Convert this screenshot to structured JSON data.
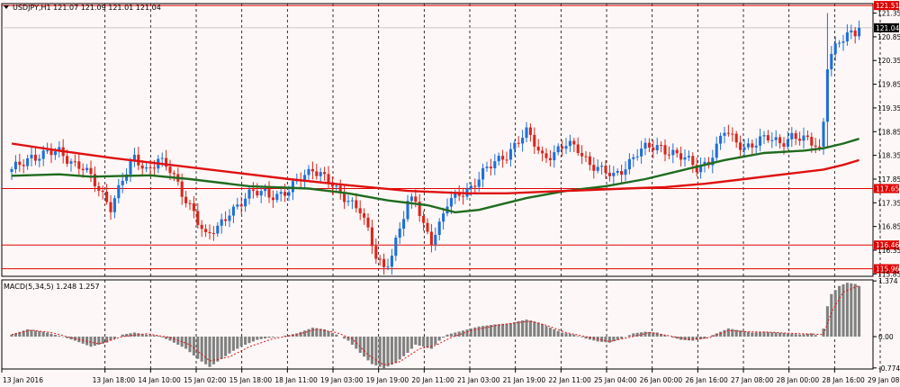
{
  "header": {
    "symbol_info": "USDJPY,H1  121.07 121.09 121.01 121.04",
    "macd_info": "MACD(5,34,5) 1.248 1.257"
  },
  "colors": {
    "background": "#fdf8f7",
    "bull": "#1e6fd9",
    "bear": "#d9261c",
    "ma_fast": "#1f6b1f",
    "ma_slow": "#e01010",
    "level": "#e00000",
    "signal": "#e01010",
    "histogram": "#808080"
  },
  "chart_data": [
    {
      "type": "candlestick",
      "symbol": "USDJPY",
      "timeframe": "H1",
      "ylim": [
        115.8,
        121.55
      ],
      "y_ticks": [
        "121.35",
        "120.85",
        "120.35",
        "119.85",
        "119.35",
        "118.85",
        "118.35",
        "117.85",
        "117.35",
        "116.85",
        "116.35",
        "115.85"
      ],
      "x_ticks": [
        "13 Jan 2016",
        "13 Jan 18:00",
        "14 Jan 10:00",
        "15 Jan 02:00",
        "15 Jan 18:00",
        "18 Jan 11:00",
        "19 Jan 03:00",
        "19 Jan 19:00",
        "20 Jan 11:00",
        "21 Jan 03:00",
        "21 Jan 19:00",
        "22 Jan 11:00",
        "25 Jan 04:00",
        "26 Jan 00:00",
        "26 Jan 16:00",
        "27 Jan 08:00",
        "28 Jan 00:00",
        "28 Jan 16:00",
        "29 Jan 08:00"
      ],
      "current_price": {
        "value": 121.04,
        "label": "121.04"
      },
      "levels": [
        {
          "value": 121.51,
          "label": "121.51"
        },
        {
          "value": 117.65,
          "label": "117.65"
        },
        {
          "value": 116.46,
          "label": "116.46"
        },
        {
          "value": 115.96,
          "label": "115.96"
        }
      ],
      "close_path": [
        [
          0,
          118.0
        ],
        [
          5,
          118.35
        ],
        [
          12,
          118.4
        ],
        [
          18,
          118.1
        ],
        [
          22,
          117.6
        ],
        [
          25,
          117.3
        ],
        [
          28,
          117.85
        ],
        [
          31,
          118.25
        ],
        [
          34,
          118.05
        ],
        [
          37,
          118.3
        ],
        [
          40,
          118.0
        ],
        [
          43,
          117.55
        ],
        [
          46,
          117.2
        ],
        [
          49,
          116.6
        ],
        [
          52,
          116.8
        ],
        [
          55,
          117.2
        ],
        [
          58,
          117.35
        ],
        [
          61,
          117.55
        ],
        [
          64,
          117.6
        ],
        [
          67,
          117.5
        ],
        [
          70,
          117.55
        ],
        [
          73,
          117.9
        ],
        [
          76,
          118.1
        ],
        [
          79,
          117.85
        ],
        [
          82,
          117.6
        ],
        [
          85,
          117.45
        ],
        [
          88,
          117.2
        ],
        [
          90,
          116.7
        ],
        [
          92,
          116.2
        ],
        [
          94,
          116.0
        ],
        [
          96,
          116.3
        ],
        [
          98,
          116.8
        ],
        [
          100,
          117.3
        ],
        [
          102,
          117.4
        ],
        [
          104,
          116.9
        ],
        [
          106,
          116.6
        ],
        [
          108,
          116.85
        ],
        [
          110,
          117.3
        ],
        [
          113,
          117.55
        ],
        [
          116,
          117.7
        ],
        [
          119,
          117.95
        ],
        [
          122,
          118.2
        ],
        [
          125,
          118.4
        ],
        [
          128,
          118.65
        ],
        [
          130,
          118.8
        ],
        [
          132,
          118.6
        ],
        [
          134,
          118.35
        ],
        [
          137,
          118.4
        ],
        [
          140,
          118.55
        ],
        [
          143,
          118.5
        ],
        [
          146,
          118.2
        ],
        [
          149,
          118.0
        ],
        [
          152,
          117.9
        ],
        [
          155,
          118.15
        ],
        [
          158,
          118.4
        ],
        [
          161,
          118.5
        ],
        [
          164,
          118.55
        ],
        [
          167,
          118.4
        ],
        [
          170,
          118.25
        ],
        [
          173,
          118.1
        ],
        [
          176,
          118.25
        ],
        [
          178,
          118.5
        ],
        [
          180,
          118.85
        ],
        [
          182,
          118.7
        ],
        [
          185,
          118.55
        ],
        [
          188,
          118.6
        ],
        [
          191,
          118.7
        ],
        [
          194,
          118.65
        ],
        [
          197,
          118.75
        ],
        [
          200,
          118.65
        ],
        [
          203,
          118.6
        ],
        [
          204,
          118.5
        ],
        [
          205,
          119.1
        ],
        [
          206,
          120.3
        ],
        [
          207,
          120.5
        ],
        [
          209,
          120.7
        ],
        [
          211,
          120.85
        ],
        [
          213,
          120.95
        ],
        [
          214,
          121.04
        ]
      ],
      "series": [
        {
          "name": "MA fast",
          "values": [
            [
              0,
              117.92
            ],
            [
              12,
              117.95
            ],
            [
              20,
              117.9
            ],
            [
              35,
              117.93
            ],
            [
              45,
              117.85
            ],
            [
              60,
              117.7
            ],
            [
              75,
              117.65
            ],
            [
              85,
              117.55
            ],
            [
              95,
              117.4
            ],
            [
              105,
              117.3
            ],
            [
              112,
              117.15
            ],
            [
              118,
              117.2
            ],
            [
              130,
              117.45
            ],
            [
              140,
              117.6
            ],
            [
              150,
              117.7
            ],
            [
              160,
              117.85
            ],
            [
              170,
              118.05
            ],
            [
              180,
              118.25
            ],
            [
              190,
              118.4
            ],
            [
              200,
              118.45
            ],
            [
              205,
              118.5
            ],
            [
              210,
              118.6
            ],
            [
              214,
              118.7
            ]
          ]
        },
        {
          "name": "MA slow",
          "values": [
            [
              0,
              118.6
            ],
            [
              12,
              118.45
            ],
            [
              25,
              118.3
            ],
            [
              40,
              118.15
            ],
            [
              55,
              118.0
            ],
            [
              70,
              117.85
            ],
            [
              85,
              117.72
            ],
            [
              100,
              117.6
            ],
            [
              115,
              117.55
            ],
            [
              125,
              117.55
            ],
            [
              140,
              117.6
            ],
            [
              155,
              117.65
            ],
            [
              165,
              117.68
            ],
            [
              175,
              117.75
            ],
            [
              185,
              117.85
            ],
            [
              195,
              117.95
            ],
            [
              205,
              118.05
            ],
            [
              210,
              118.15
            ],
            [
              214,
              118.25
            ]
          ]
        }
      ]
    },
    {
      "type": "macd",
      "title": "MACD(5,34,5) 1.248 1.257",
      "ylim": [
        -0.8,
        1.4
      ],
      "y_ticks": [
        "1.374",
        "0.00",
        "-0.774"
      ],
      "histogram": [
        [
          0,
          0.05
        ],
        [
          4,
          0.18
        ],
        [
          8,
          0.12
        ],
        [
          12,
          0.02
        ],
        [
          16,
          -0.1
        ],
        [
          20,
          -0.25
        ],
        [
          24,
          -0.15
        ],
        [
          28,
          0.05
        ],
        [
          31,
          0.1
        ],
        [
          34,
          0.05
        ],
        [
          37,
          0.02
        ],
        [
          40,
          -0.1
        ],
        [
          44,
          -0.3
        ],
        [
          47,
          -0.55
        ],
        [
          50,
          -0.75
        ],
        [
          53,
          -0.55
        ],
        [
          56,
          -0.35
        ],
        [
          59,
          -0.2
        ],
        [
          62,
          -0.08
        ],
        [
          65,
          -0.03
        ],
        [
          68,
          0.0
        ],
        [
          72,
          0.08
        ],
        [
          76,
          0.22
        ],
        [
          79,
          0.18
        ],
        [
          82,
          0.05
        ],
        [
          85,
          -0.1
        ],
        [
          88,
          -0.4
        ],
        [
          91,
          -0.68
        ],
        [
          94,
          -0.78
        ],
        [
          97,
          -0.65
        ],
        [
          100,
          -0.4
        ],
        [
          102,
          -0.2
        ],
        [
          104,
          -0.25
        ],
        [
          106,
          -0.3
        ],
        [
          108,
          -0.1
        ],
        [
          110,
          0.05
        ],
        [
          114,
          0.15
        ],
        [
          118,
          0.25
        ],
        [
          122,
          0.3
        ],
        [
          126,
          0.33
        ],
        [
          128,
          0.38
        ],
        [
          130,
          0.42
        ],
        [
          133,
          0.35
        ],
        [
          136,
          0.22
        ],
        [
          139,
          0.1
        ],
        [
          142,
          0.05
        ],
        [
          145,
          -0.05
        ],
        [
          148,
          -0.12
        ],
        [
          151,
          -0.15
        ],
        [
          154,
          -0.05
        ],
        [
          157,
          0.08
        ],
        [
          160,
          0.12
        ],
        [
          163,
          0.1
        ],
        [
          166,
          0.0
        ],
        [
          169,
          -0.08
        ],
        [
          172,
          -0.1
        ],
        [
          175,
          -0.05
        ],
        [
          178,
          0.08
        ],
        [
          181,
          0.2
        ],
        [
          184,
          0.15
        ],
        [
          187,
          0.1
        ],
        [
          190,
          0.12
        ],
        [
          193,
          0.1
        ],
        [
          196,
          0.08
        ],
        [
          199,
          0.05
        ],
        [
          202,
          0.08
        ],
        [
          204,
          0.0
        ],
        [
          205,
          0.2
        ],
        [
          206,
          0.75
        ],
        [
          207,
          1.05
        ],
        [
          209,
          1.25
        ],
        [
          211,
          1.33
        ],
        [
          213,
          1.3
        ],
        [
          214,
          1.25
        ]
      ],
      "signal": [
        [
          0,
          0.05
        ],
        [
          5,
          0.16
        ],
        [
          10,
          0.1
        ],
        [
          16,
          -0.05
        ],
        [
          22,
          -0.18
        ],
        [
          28,
          0.0
        ],
        [
          34,
          0.07
        ],
        [
          40,
          -0.02
        ],
        [
          45,
          -0.2
        ],
        [
          50,
          -0.6
        ],
        [
          55,
          -0.5
        ],
        [
          60,
          -0.25
        ],
        [
          66,
          -0.05
        ],
        [
          72,
          0.05
        ],
        [
          77,
          0.18
        ],
        [
          82,
          0.1
        ],
        [
          86,
          -0.05
        ],
        [
          90,
          -0.45
        ],
        [
          94,
          -0.7
        ],
        [
          98,
          -0.62
        ],
        [
          103,
          -0.3
        ],
        [
          107,
          -0.22
        ],
        [
          111,
          -0.02
        ],
        [
          116,
          0.15
        ],
        [
          122,
          0.27
        ],
        [
          128,
          0.35
        ],
        [
          131,
          0.38
        ],
        [
          135,
          0.28
        ],
        [
          140,
          0.1
        ],
        [
          146,
          -0.02
        ],
        [
          151,
          -0.12
        ],
        [
          156,
          -0.02
        ],
        [
          161,
          0.1
        ],
        [
          166,
          0.02
        ],
        [
          171,
          -0.07
        ],
        [
          176,
          -0.03
        ],
        [
          181,
          0.15
        ],
        [
          186,
          0.12
        ],
        [
          191,
          0.11
        ],
        [
          197,
          0.08
        ],
        [
          203,
          0.06
        ],
        [
          205,
          0.05
        ],
        [
          207,
          0.6
        ],
        [
          210,
          1.1
        ],
        [
          214,
          1.26
        ]
      ]
    }
  ]
}
